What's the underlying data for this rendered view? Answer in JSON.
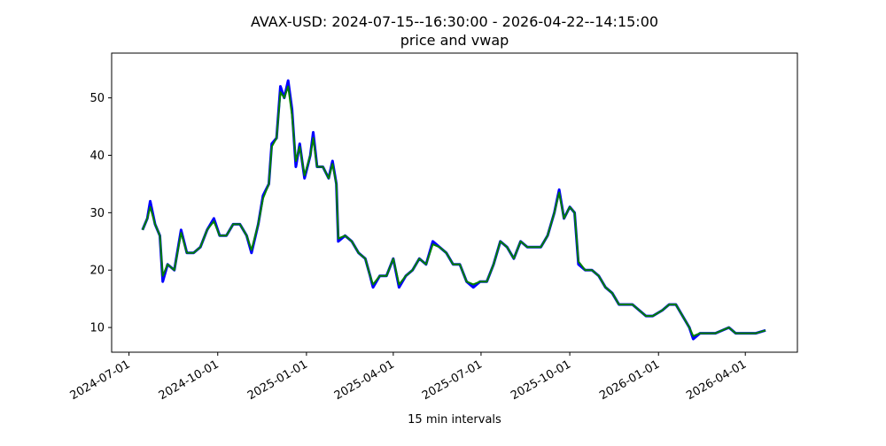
{
  "chart_data": {
    "type": "line",
    "title": "AVAX-USD: 2024-07-15--16:30:00 - 2026-04-22--14:15:00",
    "subtitle": "price and vwap",
    "x_label": "15 min intervals",
    "x": [
      "2024-07-15",
      "2024-07-20",
      "2024-07-23",
      "2024-07-28",
      "2024-08-02",
      "2024-08-05",
      "2024-08-10",
      "2024-08-17",
      "2024-08-24",
      "2024-08-30",
      "2024-09-06",
      "2024-09-13",
      "2024-09-20",
      "2024-09-27",
      "2024-10-03",
      "2024-10-10",
      "2024-10-17",
      "2024-10-24",
      "2024-10-31",
      "2024-11-05",
      "2024-11-12",
      "2024-11-17",
      "2024-11-23",
      "2024-11-26",
      "2024-12-01",
      "2024-12-05",
      "2024-12-09",
      "2024-12-13",
      "2024-12-17",
      "2024-12-21",
      "2024-12-25",
      "2024-12-30",
      "2025-01-05",
      "2025-01-08",
      "2025-01-12",
      "2025-01-18",
      "2025-01-24",
      "2025-01-28",
      "2025-02-01",
      "2025-02-03",
      "2025-02-10",
      "2025-02-17",
      "2025-02-24",
      "2025-03-03",
      "2025-03-08",
      "2025-03-11",
      "2025-03-18",
      "2025-03-25",
      "2025-04-01",
      "2025-04-07",
      "2025-04-14",
      "2025-04-21",
      "2025-04-28",
      "2025-05-05",
      "2025-05-12",
      "2025-05-19",
      "2025-05-26",
      "2025-06-02",
      "2025-06-09",
      "2025-06-16",
      "2025-06-23",
      "2025-06-30",
      "2025-07-07",
      "2025-07-14",
      "2025-07-21",
      "2025-07-28",
      "2025-08-04",
      "2025-08-11",
      "2025-08-18",
      "2025-08-25",
      "2025-09-01",
      "2025-09-08",
      "2025-09-15",
      "2025-09-20",
      "2025-09-25",
      "2025-10-01",
      "2025-10-06",
      "2025-10-10",
      "2025-10-17",
      "2025-10-24",
      "2025-10-31",
      "2025-11-07",
      "2025-11-14",
      "2025-11-21",
      "2025-11-28",
      "2025-12-05",
      "2025-12-12",
      "2025-12-19",
      "2025-12-26",
      "2026-01-05",
      "2026-01-12",
      "2026-01-19",
      "2026-01-26",
      "2026-02-02",
      "2026-02-06",
      "2026-02-13",
      "2026-02-20",
      "2026-03-01",
      "2026-03-08",
      "2026-03-15",
      "2026-03-22",
      "2026-03-29",
      "2026-04-05",
      "2026-04-12",
      "2026-04-22"
    ],
    "series": [
      {
        "color": "#0000ff",
        "values": [
          27,
          29,
          32,
          28,
          26,
          18,
          21,
          20,
          27,
          23,
          23,
          24,
          27,
          29,
          26,
          26,
          28,
          28,
          26,
          23,
          28,
          33,
          35,
          42,
          43,
          52,
          50,
          53,
          48,
          38,
          42,
          36,
          40,
          44,
          38,
          38,
          36,
          39,
          35,
          25,
          26,
          25,
          23,
          22,
          19,
          17,
          19,
          19,
          22,
          17,
          19,
          20,
          22,
          21,
          25,
          24,
          23,
          21,
          21,
          18,
          17,
          18,
          18,
          21,
          25,
          24,
          22,
          25,
          24,
          24,
          24,
          26,
          30,
          34,
          29,
          31,
          30,
          21,
          20,
          20,
          19,
          17,
          16,
          14,
          14,
          14,
          13,
          12,
          12,
          13,
          14,
          14,
          12,
          10,
          8,
          9,
          9,
          9,
          9.5,
          10,
          9,
          9,
          9,
          9,
          9.5
        ]
      },
      {
        "color": "#008000",
        "values": [
          27,
          29,
          31,
          28,
          26,
          19,
          21,
          20,
          26.5,
          23,
          23,
          24,
          27,
          28.5,
          26,
          26,
          28,
          28,
          26,
          23.5,
          28,
          32.5,
          35,
          41.5,
          43,
          51,
          50,
          52,
          47,
          39,
          41.5,
          36.5,
          40,
          43,
          38,
          38,
          36,
          38.5,
          35,
          25.5,
          26,
          25,
          23,
          22,
          19,
          17.5,
          19,
          19,
          22,
          17.5,
          19,
          20,
          22,
          21,
          24.5,
          24,
          23,
          21,
          21,
          18,
          17.5,
          18,
          18,
          21,
          25,
          24,
          22,
          25,
          24,
          24,
          24,
          26,
          30,
          33.5,
          29,
          31,
          30,
          21.5,
          20,
          20,
          19,
          17,
          16,
          14,
          14,
          14,
          13,
          12,
          12,
          13,
          14,
          14,
          12,
          10,
          8.5,
          9,
          9,
          9,
          9.5,
          10,
          9,
          9,
          9,
          9,
          9.5
        ]
      }
    ],
    "xlim": [
      "2024-06-13",
      "2026-05-25"
    ],
    "xticks": [
      "2024-07-01",
      "2024-10-01",
      "2025-01-01",
      "2025-04-01",
      "2025-07-01",
      "2025-10-01",
      "2026-01-01",
      "2026-04-01"
    ],
    "ylim": [
      5.7,
      57.8
    ],
    "yticks": [
      10,
      20,
      30,
      40,
      50
    ],
    "grid": false
  }
}
